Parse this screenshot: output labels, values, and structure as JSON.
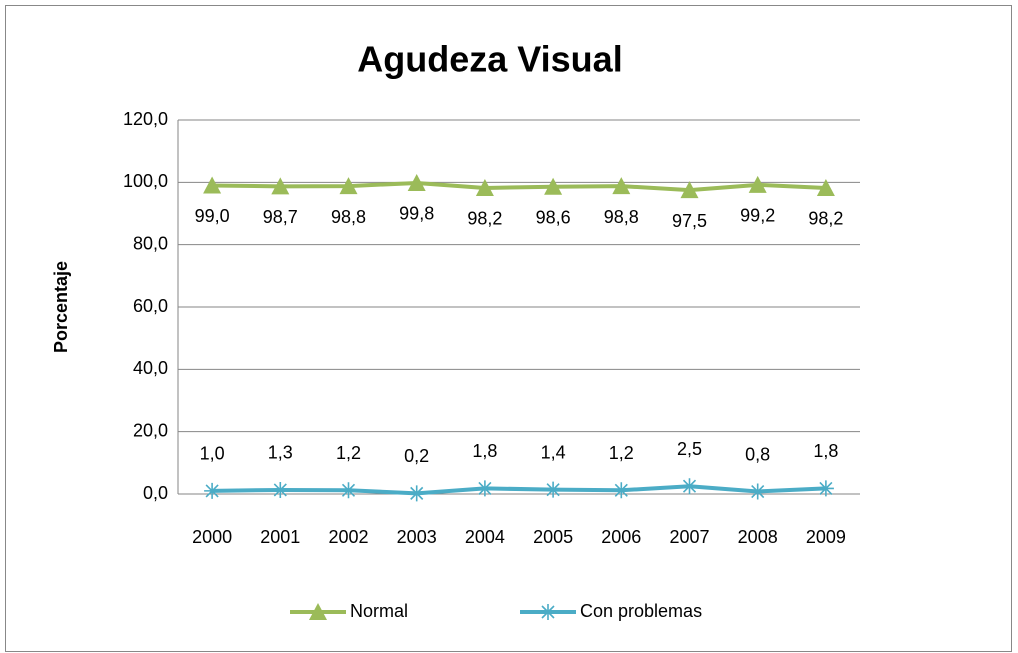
{
  "chart_data": {
    "type": "line",
    "title": "Agudeza Visual",
    "y_label": "Porcentaje",
    "categories": [
      "2000",
      "2001",
      "2002",
      "2003",
      "2004",
      "2005",
      "2006",
      "2007",
      "2008",
      "2009"
    ],
    "series": [
      {
        "name": "Normal",
        "color": "#9bbb59",
        "marker": "triangle",
        "label_side": "below",
        "values": [
          99.0,
          98.7,
          98.8,
          99.8,
          98.2,
          98.6,
          98.8,
          97.5,
          99.2,
          98.2
        ],
        "value_labels": [
          "99,0",
          "98,7",
          "98,8",
          "99,8",
          "98,2",
          "98,6",
          "98,8",
          "97,5",
          "99,2",
          "98,2"
        ]
      },
      {
        "name": "Con problemas",
        "color": "#4bacc6",
        "marker": "asterisk",
        "label_side": "above",
        "values": [
          1.0,
          1.3,
          1.2,
          0.2,
          1.8,
          1.4,
          1.2,
          2.5,
          0.8,
          1.8
        ],
        "value_labels": [
          "1,0",
          "1,3",
          "1,2",
          "0,2",
          "1,8",
          "1,4",
          "1,2",
          "2,5",
          "0,8",
          "1,8"
        ]
      }
    ],
    "ylim": [
      0,
      120
    ],
    "yticks": [
      {
        "value": 0,
        "label": "0,0"
      },
      {
        "value": 20,
        "label": "20,0"
      },
      {
        "value": 40,
        "label": "40,0"
      },
      {
        "value": 60,
        "label": "60,0"
      },
      {
        "value": 80,
        "label": "80,0"
      },
      {
        "value": 100,
        "label": "100,0"
      },
      {
        "value": 120,
        "label": "120,0"
      }
    ],
    "grid": true,
    "legend_position": "bottom"
  }
}
